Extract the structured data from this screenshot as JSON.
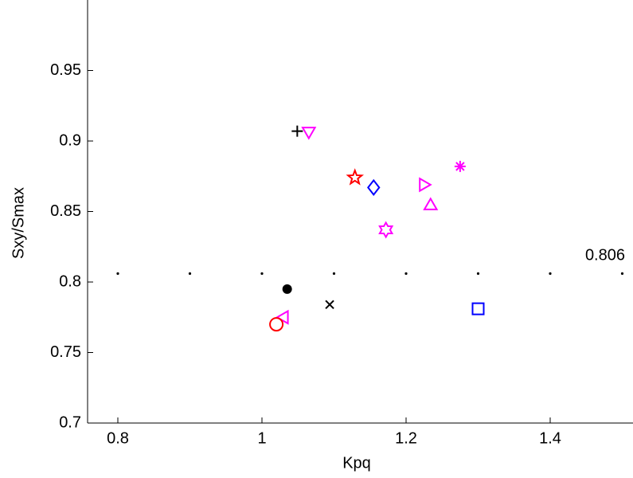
{
  "chart_data": {
    "type": "scatter",
    "x_label": "Kpq",
    "y_label": "Sxy/Smax",
    "xlim": [
      0.76,
      1.52
    ],
    "ylim": [
      0.7,
      1.0
    ],
    "xticks": [
      0.8,
      1,
      1.2,
      1.4
    ],
    "yticks": [
      0.7,
      0.75,
      0.8,
      0.85,
      0.9,
      0.95
    ],
    "reference": {
      "y": 0.806,
      "x": [
        0.8,
        0.9,
        1.0,
        1.1,
        1.2,
        1.3,
        1.4,
        1.5
      ],
      "color": "#000000"
    },
    "series": [
      {
        "marker": "plus",
        "color": "#000000",
        "x": [
          1.049
        ],
        "values": [
          0.907
        ]
      },
      {
        "marker": "triangle-down",
        "color": "#ff00ff",
        "x": [
          1.065
        ],
        "values": [
          0.907
        ]
      },
      {
        "marker": "star",
        "color": "#ff0000",
        "x": [
          1.129
        ],
        "values": [
          0.874
        ]
      },
      {
        "marker": "diamond",
        "color": "#0000ff",
        "x": [
          1.155
        ],
        "values": [
          0.867
        ]
      },
      {
        "marker": "asterisk",
        "color": "#ff00ff",
        "x": [
          1.275
        ],
        "values": [
          0.882
        ]
      },
      {
        "marker": "triangle-right",
        "color": "#ff00ff",
        "x": [
          1.224
        ],
        "values": [
          0.869
        ]
      },
      {
        "marker": "triangle-up",
        "color": "#ff00ff",
        "x": [
          1.234
        ],
        "values": [
          0.854
        ]
      },
      {
        "marker": "hexagram",
        "color": "#ff00ff",
        "x": [
          1.172
        ],
        "values": [
          0.837
        ]
      },
      {
        "marker": "dot",
        "color": "#000000",
        "x": [
          1.035
        ],
        "values": [
          0.795
        ]
      },
      {
        "marker": "x",
        "color": "#000000",
        "x": [
          1.094
        ],
        "values": [
          0.784
        ]
      },
      {
        "marker": "square",
        "color": "#0000ff",
        "x": [
          1.3
        ],
        "values": [
          0.781
        ]
      },
      {
        "marker": "triangle-left",
        "color": "#ff00ff",
        "x": [
          1.031
        ],
        "values": [
          0.775
        ]
      },
      {
        "marker": "circle",
        "color": "#ff0000",
        "x": [
          1.02
        ],
        "values": [
          0.77
        ]
      }
    ]
  }
}
